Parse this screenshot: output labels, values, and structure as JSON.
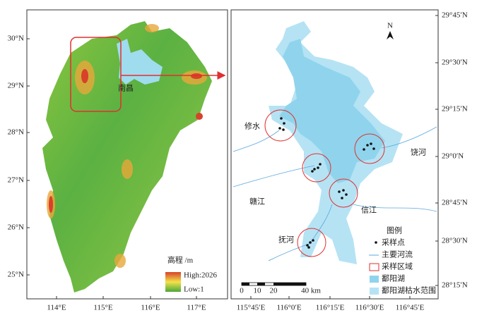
{
  "left_map": {
    "lat_labels": [
      "30°N",
      "29°N",
      "28°N",
      "27°N",
      "26°N",
      "25°N"
    ],
    "lon_labels": [
      "114°E",
      "115°E",
      "116°E",
      "117°E"
    ],
    "city": "南昌",
    "legend": {
      "title": "高程 /m",
      "high": "High:2026",
      "low": "Low:1"
    }
  },
  "right_map": {
    "lat_labels": [
      "29°45′N",
      "29°30′N",
      "29°15′N",
      "29°0′N",
      "28°45′N",
      "28°30′N",
      "28°15′N"
    ],
    "lon_labels": [
      "115°45′E",
      "116°0′E",
      "116°15′E",
      "116°30′E",
      "116°45′E"
    ],
    "north": "N",
    "rivers": [
      "修水",
      "饶河",
      "赣江",
      "信江",
      "抚河"
    ],
    "scale": [
      "0",
      "10",
      "20",
      "40 km"
    ],
    "legend": {
      "title": "图例",
      "items": [
        "采样点",
        "主要河流",
        "采样区域",
        "鄱阳湖",
        "鄱阳湖枯水范围"
      ]
    }
  }
}
